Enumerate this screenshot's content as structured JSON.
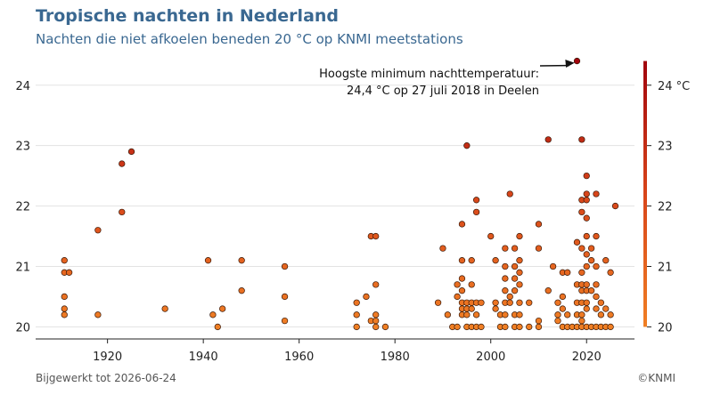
{
  "header": {
    "title": "Tropische nachten in Nederland",
    "subtitle": "Nachten die niet afkoelen beneden 20 °C op KNMI meetstations"
  },
  "footer": {
    "updated": "Bijgewerkt tot 2026-06-24",
    "credit": "©KNMI"
  },
  "colors": {
    "title": "#3a6891",
    "scale_low": "#f07f24",
    "scale_mid": "#d8451a",
    "scale_high": "#a1050d",
    "point_stroke": "#3a1a0a"
  },
  "chart_data": {
    "type": "scatter",
    "xlim": [
      1905,
      2030
    ],
    "ylim": [
      19.8,
      24.6
    ],
    "x_ticks": [
      1920,
      1940,
      1960,
      1980,
      2000,
      2020
    ],
    "y_ticks": [
      20,
      21,
      22,
      23,
      24
    ],
    "grid": true,
    "colorbar": {
      "ticks": [
        {
          "value": 20,
          "label": "20"
        },
        {
          "value": 21,
          "label": "21"
        },
        {
          "value": 22,
          "label": "22"
        },
        {
          "value": 23,
          "label": "23"
        },
        {
          "value": 24,
          "label": "24 °C"
        }
      ],
      "min": 20,
      "max": 24.4
    },
    "annotation": {
      "line1": "Hoogste minimum nachttemperatuur:",
      "line2": "24,4 °C op 27 juli 2018 in Deelen",
      "target": [
        2018.6,
        24.4
      ]
    },
    "points": [
      [
        1911,
        21.1
      ],
      [
        1911,
        20.9
      ],
      [
        1912,
        20.9
      ],
      [
        1911,
        20.5
      ],
      [
        1911,
        20.3
      ],
      [
        1911,
        20.2
      ],
      [
        1918,
        21.6
      ],
      [
        1918,
        20.2
      ],
      [
        1923,
        22.7
      ],
      [
        1923,
        21.9
      ],
      [
        1925,
        22.9
      ],
      [
        1932,
        20.3
      ],
      [
        1941,
        21.1
      ],
      [
        1942,
        20.2
      ],
      [
        1943,
        20.0
      ],
      [
        1944,
        20.3
      ],
      [
        1948,
        21.1
      ],
      [
        1948,
        20.6
      ],
      [
        1957,
        21.0
      ],
      [
        1957,
        20.5
      ],
      [
        1957,
        20.1
      ],
      [
        1972,
        20.4
      ],
      [
        1972,
        20.2
      ],
      [
        1972,
        20.0
      ],
      [
        1974,
        20.5
      ],
      [
        1975,
        21.5
      ],
      [
        1976,
        21.5
      ],
      [
        1976,
        20.7
      ],
      [
        1976,
        20.2
      ],
      [
        1975,
        20.1
      ],
      [
        1976,
        20.1
      ],
      [
        1976,
        20.0
      ],
      [
        1978,
        20.0
      ],
      [
        1989,
        20.4
      ],
      [
        1990,
        21.3
      ],
      [
        1991,
        20.2
      ],
      [
        1992,
        20.0
      ],
      [
        1993,
        20.7
      ],
      [
        1993,
        20.5
      ],
      [
        1993,
        20.0
      ],
      [
        1994,
        21.7
      ],
      [
        1994,
        21.1
      ],
      [
        1994,
        20.8
      ],
      [
        1994,
        20.6
      ],
      [
        1994,
        20.4
      ],
      [
        1994,
        20.3
      ],
      [
        1994,
        20.2
      ],
      [
        1995,
        23.0
      ],
      [
        1995,
        20.4
      ],
      [
        1995,
        20.3
      ],
      [
        1995,
        20.2
      ],
      [
        1995,
        20.0
      ],
      [
        1996,
        21.1
      ],
      [
        1996,
        20.7
      ],
      [
        1996,
        20.4
      ],
      [
        1996,
        20.3
      ],
      [
        1996,
        20.0
      ],
      [
        1997,
        22.1
      ],
      [
        1997,
        21.9
      ],
      [
        1997,
        20.4
      ],
      [
        1997,
        20.2
      ],
      [
        1997,
        20.0
      ],
      [
        1998,
        20.4
      ],
      [
        1998,
        20.0
      ],
      [
        2000,
        21.5
      ],
      [
        2001,
        21.1
      ],
      [
        2001,
        20.4
      ],
      [
        2001,
        20.3
      ],
      [
        2002,
        20.2
      ],
      [
        2002,
        20.0
      ],
      [
        2003,
        21.3
      ],
      [
        2003,
        21.0
      ],
      [
        2003,
        20.8
      ],
      [
        2003,
        20.6
      ],
      [
        2003,
        20.4
      ],
      [
        2003,
        20.2
      ],
      [
        2003,
        20.0
      ],
      [
        2004,
        22.2
      ],
      [
        2004,
        20.5
      ],
      [
        2004,
        20.4
      ],
      [
        2005,
        21.3
      ],
      [
        2005,
        21.0
      ],
      [
        2005,
        20.8
      ],
      [
        2005,
        20.6
      ],
      [
        2005,
        20.2
      ],
      [
        2005,
        20.0
      ],
      [
        2006,
        21.5
      ],
      [
        2006,
        21.1
      ],
      [
        2006,
        20.9
      ],
      [
        2006,
        20.7
      ],
      [
        2006,
        20.4
      ],
      [
        2006,
        20.2
      ],
      [
        2006,
        20.0
      ],
      [
        2008,
        20.4
      ],
      [
        2008,
        20.0
      ],
      [
        2010,
        21.7
      ],
      [
        2010,
        21.3
      ],
      [
        2010,
        20.1
      ],
      [
        2010,
        20.0
      ],
      [
        2012,
        23.1
      ],
      [
        2012,
        20.6
      ],
      [
        2013,
        21.0
      ],
      [
        2014,
        20.4
      ],
      [
        2014,
        20.2
      ],
      [
        2014,
        20.1
      ],
      [
        2015,
        20.9
      ],
      [
        2015,
        20.5
      ],
      [
        2015,
        20.3
      ],
      [
        2015,
        20.0
      ],
      [
        2016,
        20.9
      ],
      [
        2016,
        20.2
      ],
      [
        2016,
        20.0
      ],
      [
        2017,
        20.0
      ],
      [
        2018,
        24.4
      ],
      [
        2018,
        21.4
      ],
      [
        2018,
        20.7
      ],
      [
        2018,
        20.4
      ],
      [
        2018,
        20.2
      ],
      [
        2018,
        20.0
      ],
      [
        2019,
        23.1
      ],
      [
        2019,
        22.1
      ],
      [
        2019,
        21.9
      ],
      [
        2019,
        21.3
      ],
      [
        2019,
        20.9
      ],
      [
        2019,
        20.7
      ],
      [
        2019,
        20.6
      ],
      [
        2019,
        20.4
      ],
      [
        2019,
        20.2
      ],
      [
        2019,
        20.1
      ],
      [
        2019,
        20.0
      ],
      [
        2020,
        22.5
      ],
      [
        2020,
        22.2
      ],
      [
        2020,
        22.1
      ],
      [
        2020,
        21.8
      ],
      [
        2020,
        21.5
      ],
      [
        2020,
        21.2
      ],
      [
        2020,
        21.0
      ],
      [
        2020,
        20.7
      ],
      [
        2020,
        20.6
      ],
      [
        2020,
        20.4
      ],
      [
        2020,
        20.3
      ],
      [
        2020,
        20.0
      ],
      [
        2021,
        21.3
      ],
      [
        2021,
        21.1
      ],
      [
        2021,
        20.6
      ],
      [
        2021,
        20.0
      ],
      [
        2022,
        22.2
      ],
      [
        2022,
        21.5
      ],
      [
        2022,
        21.0
      ],
      [
        2022,
        20.7
      ],
      [
        2022,
        20.5
      ],
      [
        2022,
        20.3
      ],
      [
        2022,
        20.0
      ],
      [
        2023,
        20.4
      ],
      [
        2023,
        20.2
      ],
      [
        2023,
        20.0
      ],
      [
        2024,
        21.1
      ],
      [
        2024,
        20.3
      ],
      [
        2024,
        20.0
      ],
      [
        2025,
        20.9
      ],
      [
        2025,
        20.2
      ],
      [
        2025,
        20.0
      ],
      [
        2026,
        22.0
      ]
    ]
  }
}
